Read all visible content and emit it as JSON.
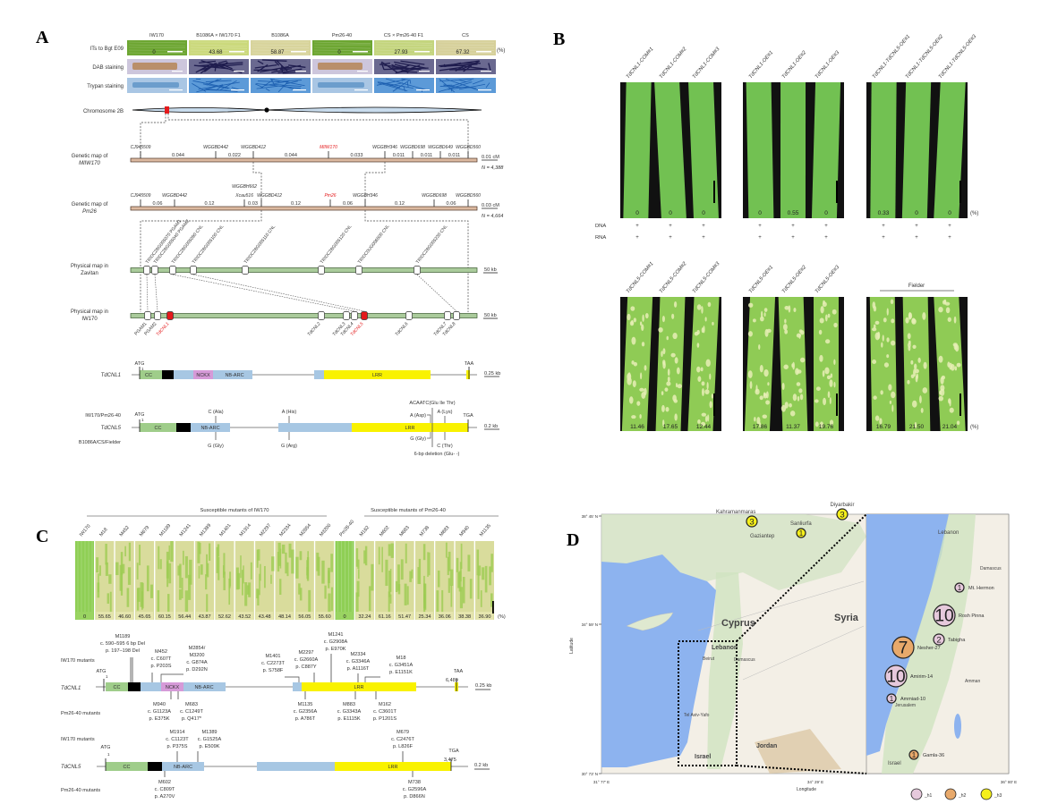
{
  "panel_labels": {
    "a": "A",
    "b": "B",
    "c": "C",
    "d": "D"
  },
  "panel_a": {
    "columns": [
      "IW170",
      "B1086A × IW170 F1",
      "B1086A",
      "Pm26-40",
      "CS × Pm26-40 F1",
      "CS"
    ],
    "row_labels": [
      "ITs to Bgt E09",
      "DAB staining",
      "Trypan staining"
    ],
    "its_values": [
      "0",
      "43.68",
      "58.87",
      "0",
      "27.93",
      "67.32"
    ],
    "percent_unit": "(%)",
    "chromosome_label": "Chromosome 2B",
    "map_miw170": {
      "label": [
        "Genetic map of",
        "MlIW170"
      ],
      "markers": [
        "CJ945509",
        "WGGBD442",
        "WGGBD412",
        "MlIW170",
        "WGGBH346",
        "WGGBD698",
        "WGGBD649",
        "WGGBD560"
      ],
      "distances": [
        "0.044",
        "0.022",
        "0.044",
        "0.033",
        "0.011",
        "0.011",
        "0.011"
      ],
      "scale": "0.01 cM",
      "n": "N = 4,388"
    },
    "map_pm26": {
      "label": [
        "Genetic map of",
        "Pm26"
      ],
      "markers": [
        "CJ945509",
        "WGGBD442",
        "Xcau516",
        "WGGBD412",
        "Pm26",
        "WGGBH346",
        "WGGBD698",
        "WGGBD560"
      ],
      "extra_marker": "WGGBH662",
      "distances": [
        "0.06",
        "0.12",
        "0.03",
        "0.12",
        "0.06",
        "0.12",
        "0.06"
      ],
      "scale": "0.03 cM",
      "n": "N = 4,664"
    },
    "physical_zavitan": {
      "label": [
        "Physical map in",
        "Zavitan"
      ],
      "genes": [
        "TRIDC2BG005070 PGAM1",
        "TRIDC2BG005040 PGAM2",
        "TRIDC2BG005090 CNL",
        "TRIDC2BG005100 CNL",
        "TRIDC2BG005110 CNL",
        "TRIDC2BG005120 CNL",
        "TRIDC0UG006500 CNL",
        "TRIDC2BG005230 CNL"
      ],
      "scale": "50 kb"
    },
    "physical_iw170": {
      "label": [
        "Physical map in",
        "IW170"
      ],
      "genes": [
        "PGAM1",
        "PGAM2",
        "TdCNL1",
        "TdCNL2",
        "TdCNL3",
        "TdCNL4",
        "TdCNL5",
        "TdCNL6",
        "TdCNL7",
        "TdCNL8"
      ],
      "scale": "50 kb"
    },
    "tdcnl1": {
      "name": "TdCNL1",
      "atg": "ATG",
      "one": "1",
      "stop": "TAA",
      "domains": [
        "CC",
        "NCKX",
        "NB-ARC",
        "LRR"
      ],
      "scale": "0.25 kb"
    },
    "tdcnl5": {
      "name": "TdCNL5",
      "atg": "ATG",
      "one": "1",
      "stop": "TGA",
      "domains": [
        "CC",
        "NB-ARC",
        "LRR"
      ],
      "scale": "0.2 kb",
      "top_genotype": "IW170/Pm26-40",
      "bottom_genotype": "B1086A/CS/Fielder",
      "top_variants": [
        "C (Ala)",
        "A (His)",
        "ACAATC(Glu Ile Thr)",
        "A (Asp)",
        "A (Lys)"
      ],
      "bottom_variants": [
        "G (Gly)",
        "G (Arg)",
        "G (Gly)",
        "C (Thr)",
        "6-bp deletion (Glu- -)"
      ]
    }
  },
  "panel_b": {
    "top_groups": [
      {
        "lines": [
          "TdCNL1-COM#1",
          "TdCNL1-COM#2",
          "TdCNL1-COM#3"
        ],
        "values": [
          "0",
          "0",
          "0"
        ]
      },
      {
        "lines": [
          "TdCNL1-OE#1",
          "TdCNL1-OE#2",
          "TdCNL1-OE#3"
        ],
        "values": [
          "0",
          "0.55",
          "0"
        ]
      },
      {
        "lines": [
          "TdCNL1-TdCNL5-OE#1",
          "TdCNL1-TdCNL5-OE#2",
          "TdCNL1-TdCNL5-OE#3"
        ],
        "values": [
          "0.33",
          "0",
          "0"
        ]
      }
    ],
    "bottom_groups": [
      {
        "lines": [
          "TdCNL5-COM#1",
          "TdCNL5-COM#2",
          "TdCNL5-COM#3"
        ],
        "values": [
          "11.46",
          "17.65",
          "12.44"
        ]
      },
      {
        "lines": [
          "TdCNL5-OE#1",
          "TdCNL5-OE#2",
          "TdCNL5-OE#3"
        ],
        "values": [
          "17.86",
          "11.37",
          "19.76"
        ]
      },
      {
        "lines": [],
        "values": [
          "16.79",
          "21.50",
          "21.04"
        ]
      }
    ],
    "fielder_label": "Fielder",
    "dna_label": "DNA",
    "rna_label": "RNA",
    "plus": "+",
    "percent_unit": "(%)"
  },
  "panel_c": {
    "group_headers": [
      "Susceptible mutants of IW170",
      "Susceptible mutants of Pm26-40"
    ],
    "lines": [
      "IW170",
      "M18",
      "M452",
      "M679",
      "M1189",
      "M1241",
      "M1389",
      "M1401",
      "M1914",
      "M2297",
      "M2334",
      "M2854",
      "M3200",
      "Pm26-40",
      "M162",
      "M602",
      "M683",
      "M738",
      "M883",
      "M940",
      "M1135"
    ],
    "values": [
      "0",
      "55.65",
      "46.60",
      "45.65",
      "60.15",
      "56.44",
      "43.87",
      "52.62",
      "43.52",
      "43.48",
      "48.14",
      "56.05",
      "55.60",
      "0",
      "32.24",
      "61.16",
      "51.47",
      "25.34",
      "36.06",
      "38.38",
      "36.90"
    ],
    "percent_unit": "(%)",
    "iw170_mutants_label": "IW170 mutants",
    "pm26_mutants_label": "Pm26-40 mutants",
    "tdcnl1": {
      "name": "TdCNL1",
      "atg": "ATG",
      "one": "1",
      "stop": "TAA",
      "length": "6,489",
      "scale": "0.25 kb",
      "domains": [
        "CC",
        "NCKX",
        "NB-ARC",
        "LRR"
      ],
      "above": [
        [
          "M1189",
          "c. 590–595 6 bp Del",
          "p. 197–198 Del"
        ],
        [
          "M452",
          "c. C607T",
          "p. P203S"
        ],
        [
          "M2854/",
          "M3200",
          "c. G874A",
          "p. D292N"
        ],
        [
          "M1401",
          "c. C2273T",
          "p. S758F"
        ],
        [
          "M2297",
          "c. G2660A",
          "p. C887Y"
        ],
        [
          "M1241",
          "c. G2908A",
          "p. E970K"
        ],
        [
          "M2334",
          "c. G3346A",
          "p. A1116T"
        ],
        [
          "M18",
          "c. G3451A",
          "p. E1151K"
        ]
      ],
      "below": [
        [
          "M940",
          "c. G1123A",
          "p. E375K"
        ],
        [
          "M683",
          "c. C1249T",
          "p. Q417*"
        ],
        [
          "M1135",
          "c. G2356A",
          "p. A786T"
        ],
        [
          "M883",
          "c. G3343A",
          "p. E1115K"
        ],
        [
          "M162",
          "c. C3601T",
          "p. P1201S"
        ]
      ]
    },
    "tdcnl5": {
      "name": "TdCNL5",
      "atg": "ATG",
      "one": "1",
      "stop": "TGA",
      "length": "3,475",
      "scale": "0.2 kb",
      "domains": [
        "CC",
        "NB-ARC",
        "LRR"
      ],
      "above": [
        [
          "M1914",
          "c. C1123T",
          "p. P375S"
        ],
        [
          "M1389",
          "c. G1525A",
          "p. E509K"
        ],
        [
          "M679",
          "c. C2476T",
          "p. L826F"
        ]
      ],
      "below": [
        [
          "M602",
          "c. C809T",
          "p. A270V"
        ],
        [
          "M738",
          "c. G2596A",
          "p. D866N"
        ]
      ]
    }
  },
  "panel_d": {
    "lat_ticks": [
      "38° 45' N",
      "34° 59' N",
      "30° 73' N"
    ],
    "lon_ticks": [
      "31° 77' E",
      "34° 29' E",
      "36° 80' E"
    ],
    "ylabel": "Latitude",
    "xlabel": "Longitude",
    "place_names": [
      "Cyprus",
      "Syria",
      "Lebanon",
      "Jordan",
      "Israel",
      "Kahramanmaras",
      "Gaziantep",
      "Sanliurfa",
      "Diyarbakir",
      "Beirut",
      "Damascus",
      "Lebanon",
      "Damascus",
      "Amman",
      "Jerusalem",
      "Israel",
      "Tel Aviv-Yafo"
    ],
    "sites": [
      {
        "count": "3",
        "name": "Kahramanmaras",
        "haplotype": "h3"
      },
      {
        "count": "1",
        "name": "Sanliurfa",
        "haplotype": "h3"
      },
      {
        "count": "3",
        "name": "Diyarbakir",
        "haplotype": "h3"
      },
      {
        "count": "1",
        "name": "Mt. Hermon",
        "haplotype": "h1"
      },
      {
        "count": "10",
        "name": "Rosh Pinna",
        "haplotype": "h1"
      },
      {
        "count": "2",
        "name": "Tabigha",
        "haplotype": "h1"
      },
      {
        "count": "7",
        "name": "Nesher-27",
        "haplotype": "h2"
      },
      {
        "count": "10",
        "name": "Amirim-14",
        "haplotype": "h1"
      },
      {
        "count": "1",
        "name": "Ammiad-10",
        "haplotype": "h1"
      },
      {
        "count": "1",
        "name": "Gamla-36",
        "haplotype": "h2"
      }
    ],
    "legend": [
      {
        "label": "_h1",
        "color": "#e6c9dc"
      },
      {
        "label": "_h2",
        "color": "#e8a96b"
      },
      {
        "label": "_h3",
        "color": "#f5ef1a"
      }
    ],
    "colors": {
      "sea": "#8db3ef",
      "land": "#f3efe6",
      "green": "#cfe3c0",
      "desert": "#dcc8a6"
    }
  }
}
